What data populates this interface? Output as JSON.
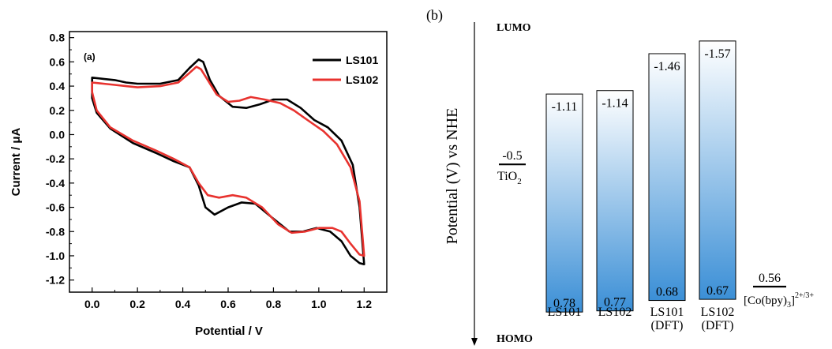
{
  "chart_data": [
    {
      "type": "line",
      "panel_label": "(a)",
      "xlabel": "Potential / V",
      "ylabel": "Current / μA",
      "xlim": [
        -0.1,
        1.3
      ],
      "ylim": [
        -1.3,
        0.85
      ],
      "xticks": [
        0.0,
        0.2,
        0.4,
        0.6,
        0.8,
        1.0,
        1.2
      ],
      "yticks": [
        -1.2,
        -1.0,
        -0.8,
        -0.6,
        -0.4,
        -0.2,
        0.0,
        0.2,
        0.4,
        0.6,
        0.8
      ],
      "xtick_labels": [
        "0.0",
        "0.2",
        "0.4",
        "0.6",
        "0.8",
        "1.0",
        "1.2"
      ],
      "ytick_labels": [
        "-1.2",
        "-1.0",
        "-0.8",
        "-0.6",
        "-0.4",
        "-0.2",
        "0.0",
        "0.2",
        "0.4",
        "0.6",
        "0.8"
      ],
      "legend_position": "top-right",
      "grid": false,
      "series": [
        {
          "name": "LS101",
          "color": "#000000",
          "points": [
            [
              0.0,
              0.47
            ],
            [
              0.05,
              0.46
            ],
            [
              0.1,
              0.45
            ],
            [
              0.15,
              0.43
            ],
            [
              0.2,
              0.42
            ],
            [
              0.3,
              0.42
            ],
            [
              0.38,
              0.45
            ],
            [
              0.43,
              0.55
            ],
            [
              0.47,
              0.62
            ],
            [
              0.49,
              0.6
            ],
            [
              0.52,
              0.45
            ],
            [
              0.56,
              0.32
            ],
            [
              0.62,
              0.23
            ],
            [
              0.68,
              0.22
            ],
            [
              0.74,
              0.25
            ],
            [
              0.8,
              0.29
            ],
            [
              0.86,
              0.29
            ],
            [
              0.92,
              0.22
            ],
            [
              0.98,
              0.12
            ],
            [
              1.04,
              0.06
            ],
            [
              1.1,
              -0.05
            ],
            [
              1.15,
              -0.25
            ],
            [
              1.18,
              -0.6
            ],
            [
              1.2,
              -1.07
            ],
            [
              1.18,
              -1.06
            ],
            [
              1.14,
              -1.0
            ],
            [
              1.1,
              -0.88
            ],
            [
              1.05,
              -0.8
            ],
            [
              0.99,
              -0.77
            ],
            [
              0.93,
              -0.8
            ],
            [
              0.87,
              -0.8
            ],
            [
              0.79,
              -0.68
            ],
            [
              0.72,
              -0.57
            ],
            [
              0.66,
              -0.56
            ],
            [
              0.6,
              -0.6
            ],
            [
              0.54,
              -0.66
            ],
            [
              0.5,
              -0.6
            ],
            [
              0.47,
              -0.42
            ],
            [
              0.43,
              -0.27
            ],
            [
              0.36,
              -0.22
            ],
            [
              0.28,
              -0.15
            ],
            [
              0.18,
              -0.07
            ],
            [
              0.08,
              0.05
            ],
            [
              0.02,
              0.18
            ],
            [
              0.0,
              0.3
            ]
          ]
        },
        {
          "name": "LS102",
          "color": "#e8332f",
          "points": [
            [
              0.0,
              0.43
            ],
            [
              0.05,
              0.42
            ],
            [
              0.1,
              0.41
            ],
            [
              0.15,
              0.4
            ],
            [
              0.2,
              0.39
            ],
            [
              0.3,
              0.4
            ],
            [
              0.38,
              0.43
            ],
            [
              0.43,
              0.51
            ],
            [
              0.46,
              0.56
            ],
            [
              0.48,
              0.54
            ],
            [
              0.51,
              0.45
            ],
            [
              0.55,
              0.33
            ],
            [
              0.6,
              0.27
            ],
            [
              0.65,
              0.28
            ],
            [
              0.7,
              0.31
            ],
            [
              0.76,
              0.29
            ],
            [
              0.83,
              0.26
            ],
            [
              0.89,
              0.2
            ],
            [
              0.95,
              0.12
            ],
            [
              1.02,
              0.03
            ],
            [
              1.08,
              -0.08
            ],
            [
              1.14,
              -0.27
            ],
            [
              1.18,
              -0.55
            ],
            [
              1.2,
              -1.0
            ],
            [
              1.18,
              -0.99
            ],
            [
              1.14,
              -0.9
            ],
            [
              1.1,
              -0.8
            ],
            [
              1.06,
              -0.77
            ],
            [
              1.0,
              -0.77
            ],
            [
              0.94,
              -0.8
            ],
            [
              0.88,
              -0.81
            ],
            [
              0.82,
              -0.74
            ],
            [
              0.75,
              -0.6
            ],
            [
              0.68,
              -0.52
            ],
            [
              0.62,
              -0.5
            ],
            [
              0.56,
              -0.52
            ],
            [
              0.51,
              -0.5
            ],
            [
              0.47,
              -0.4
            ],
            [
              0.43,
              -0.27
            ],
            [
              0.36,
              -0.2
            ],
            [
              0.28,
              -0.13
            ],
            [
              0.18,
              -0.05
            ],
            [
              0.08,
              0.06
            ],
            [
              0.02,
              0.2
            ],
            [
              0.0,
              0.35
            ]
          ]
        }
      ]
    },
    {
      "type": "bar",
      "panel_label": "(b)",
      "ylabel": "Potential (V) vs NHE",
      "axis_top_label": "LUMO",
      "axis_bottom_label": "HOMO",
      "ylim": [
        -1.72,
        0.95
      ],
      "categories": [
        [
          "LS101"
        ],
        [
          "LS102"
        ],
        [
          "LS101",
          "(DFT)"
        ],
        [
          "LS102",
          "(DFT)"
        ]
      ],
      "lumo_values": [
        -1.11,
        -1.14,
        -1.46,
        -1.57
      ],
      "homo_values": [
        0.78,
        0.77,
        0.68,
        0.67
      ],
      "lumo_labels": [
        "-1.11",
        "-1.14",
        "-1.46",
        "-1.57"
      ],
      "homo_labels": [
        "0.78",
        "0.77",
        "0.68",
        "0.67"
      ],
      "reference_levels": [
        {
          "label": "TiO",
          "subscript": "2",
          "superscript": "",
          "value": -0.5,
          "value_label": "-0.5"
        },
        {
          "label": "[Co(bpy)",
          "subscript": "3",
          "superscript": "2+/3+",
          "suffix": "]",
          "value": 0.56,
          "value_label": "0.56"
        }
      ],
      "bar_gradient": [
        "#ffffff",
        "#3b8fd6"
      ]
    }
  ]
}
